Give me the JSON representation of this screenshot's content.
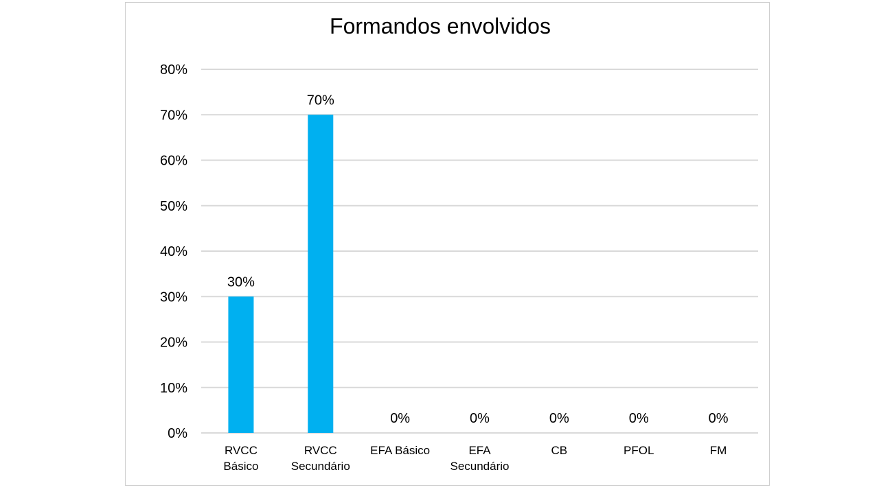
{
  "chart_data": {
    "type": "bar",
    "title": "Formandos envolvidos",
    "xlabel": "",
    "ylabel": "",
    "categories": [
      [
        "RVCC",
        "Básico"
      ],
      [
        "RVCC",
        "Secundário"
      ],
      [
        "EFA Básico"
      ],
      [
        "EFA",
        "Secundário"
      ],
      [
        "CB"
      ],
      [
        "PFOL"
      ],
      [
        "FM"
      ]
    ],
    "values": [
      30,
      70,
      0,
      0,
      0,
      0,
      0
    ],
    "data_labels": [
      "30%",
      "70%",
      "0%",
      "0%",
      "0%",
      "0%",
      "0%"
    ],
    "ylim": [
      0,
      80
    ],
    "yticks": [
      0,
      10,
      20,
      30,
      40,
      50,
      60,
      70,
      80
    ],
    "ytick_labels": [
      "0%",
      "10%",
      "20%",
      "30%",
      "40%",
      "50%",
      "60%",
      "70%",
      "80%"
    ],
    "grid": true,
    "legend": "none",
    "bar_color": "#00B0F0",
    "grid_color": "#D9D9D9"
  }
}
